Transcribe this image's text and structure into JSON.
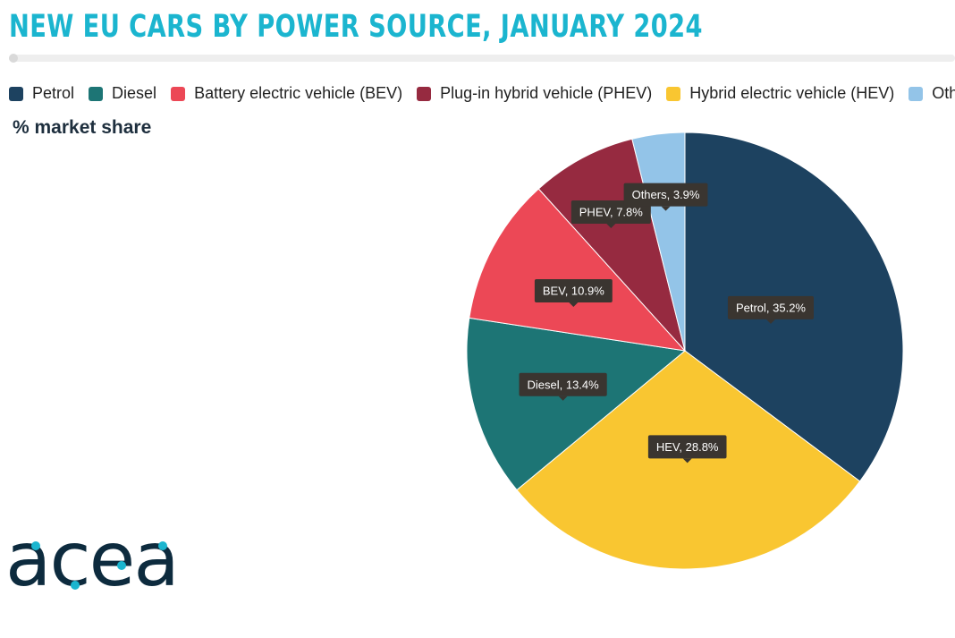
{
  "title": "NEW EU CARS BY POWER SOURCE, JANUARY 2024",
  "subtitle": "% market share",
  "colors": {
    "title": "#1bb5cf",
    "label_box": "#3a3530"
  },
  "logo": {
    "text": "acea",
    "color": "#0d2b3e",
    "accent": "#1bb5cf"
  },
  "chart_data": {
    "type": "pie",
    "title": "NEW EU CARS BY POWER SOURCE, JANUARY 2024",
    "subtitle": "% market share",
    "legend_position": "top",
    "unit": "%",
    "slices": [
      {
        "legend": "Petrol",
        "label": "Petrol, 35.2%",
        "value": 35.2,
        "color": "#1d4260"
      },
      {
        "legend": "Hybrid electric vehicle (HEV)",
        "label": "HEV, 28.8%",
        "value": 28.8,
        "color": "#f9c631"
      },
      {
        "legend": "Diesel",
        "label": "Diesel, 13.4%",
        "value": 13.4,
        "color": "#1d7575"
      },
      {
        "legend": "Battery electric vehicle (BEV)",
        "label": "BEV, 10.9%",
        "value": 10.9,
        "color": "#ec4856"
      },
      {
        "legend": "Plug-in hybrid vehicle (PHEV)",
        "label": "PHEV, 7.8%",
        "value": 7.8,
        "color": "#962a40"
      },
      {
        "legend": "Others",
        "label": "Others, 3.9%",
        "value": 3.9,
        "color": "#93c4e8"
      }
    ],
    "legend": [
      {
        "label": "Petrol",
        "color": "#1d4260"
      },
      {
        "label": "Diesel",
        "color": "#1d7575"
      },
      {
        "label": "Battery electric vehicle (BEV)",
        "color": "#ec4856"
      },
      {
        "label": "Plug-in hybrid vehicle (PHEV)",
        "color": "#962a40"
      },
      {
        "label": "Hybrid electric vehicle (HEV)",
        "color": "#f9c631"
      },
      {
        "label": "Others",
        "color": "#93c4e8"
      }
    ]
  }
}
